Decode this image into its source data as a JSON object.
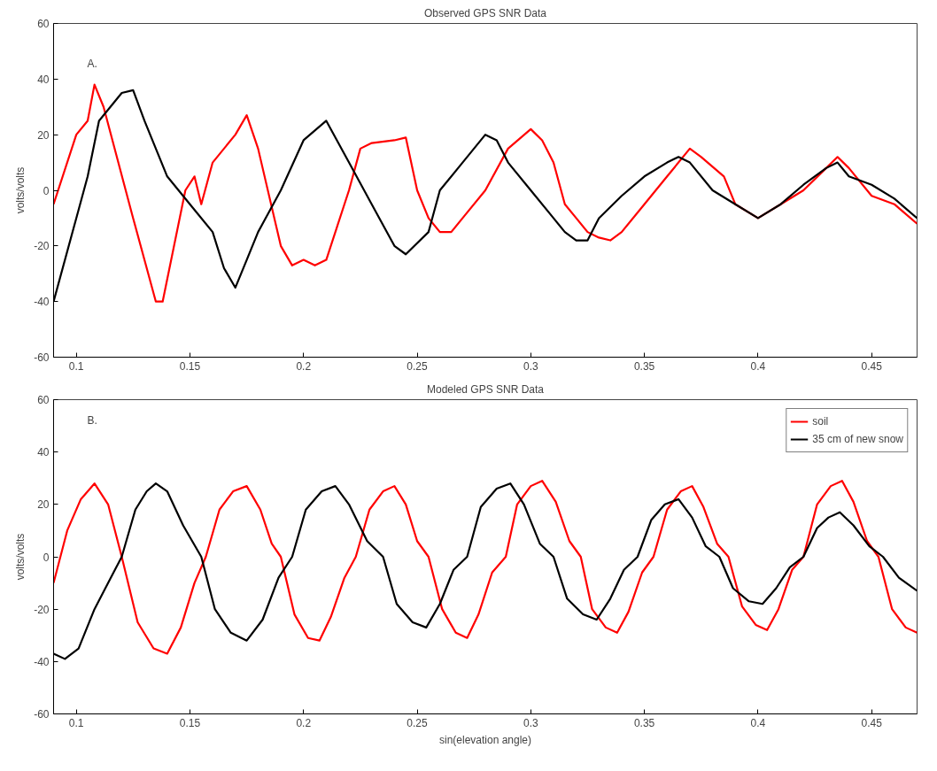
{
  "chart_data": [
    {
      "type": "line",
      "title": "Observed GPS SNR Data",
      "ylabel": "volts/volts",
      "annotations": [
        "A."
      ],
      "xlim": [
        0.09,
        0.47
      ],
      "ylim": [
        -60,
        60
      ],
      "xticks": [
        0.1,
        0.15,
        0.2,
        0.25,
        0.3,
        0.35,
        0.4,
        0.45
      ],
      "yticks": [
        -60,
        -40,
        -20,
        0,
        20,
        40,
        60
      ],
      "grid": false,
      "legend": false,
      "series": [
        {
          "color": "#ff0000",
          "x": [
            0.09,
            0.1,
            0.105,
            0.108,
            0.112,
            0.125,
            0.135,
            0.138,
            0.148,
            0.152,
            0.155,
            0.16,
            0.17,
            0.175,
            0.18,
            0.19,
            0.195,
            0.2,
            0.205,
            0.21,
            0.22,
            0.225,
            0.23,
            0.24,
            0.245,
            0.25,
            0.255,
            0.26,
            0.265,
            0.27,
            0.28,
            0.29,
            0.3,
            0.305,
            0.31,
            0.315,
            0.32,
            0.325,
            0.33,
            0.335,
            0.34,
            0.35,
            0.36,
            0.37,
            0.375,
            0.385,
            0.39,
            0.4,
            0.41,
            0.42,
            0.43,
            0.435,
            0.44,
            0.45,
            0.46,
            0.47
          ],
          "values": [
            -5,
            20,
            25,
            38,
            30,
            -10,
            -40,
            -40,
            0,
            5,
            -5,
            10,
            20,
            27,
            15,
            -20,
            -27,
            -25,
            -27,
            -25,
            0,
            15,
            17,
            18,
            19,
            0,
            -10,
            -15,
            -15,
            -10,
            0,
            15,
            22,
            18,
            10,
            -5,
            -10,
            -15,
            -17,
            -18,
            -15,
            -5,
            5,
            15,
            12,
            5,
            -5,
            -10,
            -5,
            0,
            8,
            12,
            8,
            -2,
            -5,
            -12
          ]
        },
        {
          "color": "#000000",
          "x": [
            0.09,
            0.1,
            0.105,
            0.11,
            0.115,
            0.12,
            0.125,
            0.13,
            0.14,
            0.15,
            0.16,
            0.165,
            0.17,
            0.175,
            0.18,
            0.19,
            0.2,
            0.21,
            0.22,
            0.23,
            0.24,
            0.245,
            0.255,
            0.26,
            0.27,
            0.28,
            0.285,
            0.29,
            0.3,
            0.31,
            0.315,
            0.32,
            0.325,
            0.33,
            0.34,
            0.35,
            0.36,
            0.365,
            0.37,
            0.38,
            0.39,
            0.4,
            0.41,
            0.42,
            0.43,
            0.435,
            0.44,
            0.45,
            0.46,
            0.47
          ],
          "values": [
            -40,
            -10,
            5,
            25,
            30,
            35,
            36,
            25,
            5,
            -5,
            -15,
            -28,
            -35,
            -25,
            -15,
            0,
            18,
            25,
            10,
            -5,
            -20,
            -23,
            -15,
            0,
            10,
            20,
            18,
            10,
            0,
            -10,
            -15,
            -18,
            -18,
            -10,
            -2,
            5,
            10,
            12,
            10,
            0,
            -5,
            -10,
            -5,
            2,
            8,
            10,
            5,
            2,
            -3,
            -10
          ]
        }
      ]
    },
    {
      "type": "line",
      "title": "Modeled GPS SNR Data",
      "xlabel": "sin(elevation angle)",
      "ylabel": "volts/volts",
      "annotations": [
        "B."
      ],
      "xlim": [
        0.09,
        0.47
      ],
      "ylim": [
        -60,
        60
      ],
      "xticks": [
        0.1,
        0.15,
        0.2,
        0.25,
        0.3,
        0.35,
        0.4,
        0.45
      ],
      "yticks": [
        -60,
        -40,
        -20,
        0,
        20,
        40,
        60
      ],
      "grid": false,
      "legend": "top right",
      "series": [
        {
          "name": "soil",
          "color": "#ff0000",
          "x": [
            0.09,
            0.096,
            0.102,
            0.108,
            0.114,
            0.12,
            0.127,
            0.134,
            0.14,
            0.146,
            0.152,
            0.157,
            0.163,
            0.169,
            0.175,
            0.181,
            0.186,
            0.19,
            0.196,
            0.202,
            0.207,
            0.212,
            0.218,
            0.223,
            0.229,
            0.235,
            0.24,
            0.245,
            0.25,
            0.255,
            0.261,
            0.267,
            0.272,
            0.277,
            0.283,
            0.289,
            0.294,
            0.3,
            0.305,
            0.311,
            0.317,
            0.322,
            0.327,
            0.333,
            0.338,
            0.343,
            0.349,
            0.354,
            0.36,
            0.366,
            0.371,
            0.376,
            0.382,
            0.387,
            0.393,
            0.399,
            0.404,
            0.409,
            0.415,
            0.42,
            0.426,
            0.432,
            0.437,
            0.442,
            0.448,
            0.453,
            0.459,
            0.465,
            0.47
          ],
          "values": [
            -10,
            10,
            22,
            28,
            20,
            0,
            -25,
            -35,
            -37,
            -27,
            -10,
            0,
            18,
            25,
            27,
            18,
            5,
            0,
            -22,
            -31,
            -32,
            -23,
            -8,
            0,
            18,
            25,
            27,
            20,
            6,
            0,
            -20,
            -29,
            -31,
            -22,
            -6,
            0,
            20,
            27,
            29,
            21,
            6,
            0,
            -20,
            -27,
            -29,
            -21,
            -6,
            0,
            18,
            25,
            27,
            19,
            5,
            0,
            -19,
            -26,
            -28,
            -20,
            -5,
            0,
            20,
            27,
            29,
            21,
            6,
            0,
            -20,
            -27,
            -29
          ]
        },
        {
          "name": "35 cm of new snow",
          "color": "#000000",
          "x": [
            0.09,
            0.095,
            0.101,
            0.108,
            0.114,
            0.12,
            0.126,
            0.131,
            0.135,
            0.14,
            0.147,
            0.155,
            0.161,
            0.168,
            0.175,
            0.182,
            0.189,
            0.195,
            0.201,
            0.208,
            0.214,
            0.22,
            0.228,
            0.235,
            0.241,
            0.248,
            0.254,
            0.26,
            0.266,
            0.272,
            0.278,
            0.285,
            0.291,
            0.297,
            0.304,
            0.31,
            0.316,
            0.323,
            0.329,
            0.335,
            0.341,
            0.347,
            0.353,
            0.359,
            0.365,
            0.371,
            0.377,
            0.383,
            0.389,
            0.396,
            0.402,
            0.408,
            0.414,
            0.42,
            0.426,
            0.431,
            0.436,
            0.442,
            0.449,
            0.455,
            0.462,
            0.47
          ],
          "values": [
            -37,
            -39,
            -35,
            -20,
            -10,
            0,
            18,
            25,
            28,
            25,
            12,
            0,
            -20,
            -29,
            -32,
            -24,
            -8,
            0,
            18,
            25,
            27,
            20,
            6,
            0,
            -18,
            -25,
            -27,
            -18,
            -5,
            0,
            19,
            26,
            28,
            20,
            5,
            0,
            -16,
            -22,
            -24,
            -16,
            -5,
            0,
            14,
            20,
            22,
            15,
            4,
            0,
            -12,
            -17,
            -18,
            -12,
            -4,
            0,
            11,
            15,
            17,
            12,
            4,
            0,
            -8,
            -13
          ]
        }
      ]
    }
  ]
}
